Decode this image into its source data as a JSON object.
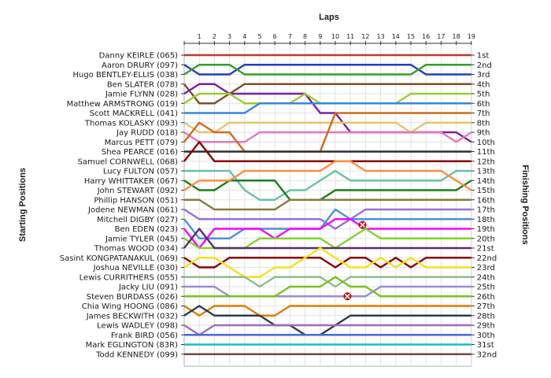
{
  "chart_data": {
    "type": "line",
    "title": "Laps",
    "xlabel": "Laps",
    "ylabel_left": "Starting Positions",
    "ylabel_right": "Finishing Positions",
    "x_ticks": [
      1,
      2,
      3,
      4,
      5,
      6,
      7,
      8,
      9,
      10,
      11,
      12,
      13,
      14,
      15,
      16,
      17,
      18,
      19
    ],
    "drivers": [
      "Danny KEIRLE (065)",
      "Aaron DRURY (097)",
      "Hugo BENTLEY-ELLIS (038)",
      "Ben SLATER (078)",
      "Jamie FLYNN (028)",
      "Matthew ARMSTRONG (019)",
      "Scott MACKRELL (041)",
      "Thomas KOLASKY (093)",
      "Jay RUDD (018)",
      "Marcus PETT (079)",
      "Shea PEARCE (016)",
      "Samuel CORNWELL (068)",
      "Lucy FULTON (057)",
      "Harry WHITTAKER (067)",
      "John STEWART (092)",
      "Phillip HANSON (051)",
      "Jodene NEWMAN (061)",
      "Mitchell DIGBY (027)",
      "Ben EDEN (023)",
      "Jamie TYLER (045)",
      "Thomas WOOD (034)",
      "Sasint KONGPATANAKUL (069)",
      "Joshua NEVILLE (030)",
      "Lewis CURRITHERS (055)",
      "Jacky LIU (091)",
      "Steven BURDASS (026)",
      "Chia Wing HOONG (086)",
      "James BECKWITH (032)",
      "Lewis WADLEY (098)",
      "Frank BIRD (056)",
      "Mark EGLINGTON (83R)",
      "Todd KENNEDY (099)"
    ],
    "finishing_labels": [
      "1st",
      "2nd",
      "3rd",
      "4th",
      "5th",
      "6th",
      "7th",
      "8th",
      "9th",
      "10th",
      "11th",
      "12th",
      "13th",
      "14th",
      "15th",
      "16th",
      "17th",
      "18th",
      "19th",
      "20th",
      "21st",
      "22nd",
      "23rd",
      "24th",
      "25th",
      "26th",
      "27th",
      "28th",
      "29th",
      "30th",
      "31st",
      "32nd"
    ],
    "series": [
      {
        "driver": "Danny KEIRLE (065)",
        "color": "#c0392b",
        "positions": [
          1,
          1,
          1,
          1,
          1,
          1,
          1,
          1,
          1,
          1,
          1,
          1,
          1,
          1,
          1,
          1,
          1,
          1,
          1,
          1
        ]
      },
      {
        "driver": "Aaron DRURY (097)",
        "color": "#1f3fbf",
        "positions": [
          2,
          3,
          3,
          3,
          2,
          2,
          2,
          2,
          2,
          2,
          2,
          2,
          2,
          2,
          2,
          2,
          3,
          3,
          3,
          3
        ]
      },
      {
        "driver": "Hugo BENTLEY-ELLIS (038)",
        "color": "#2ca02c",
        "positions": [
          3,
          2,
          2,
          2,
          3,
          3,
          3,
          3,
          3,
          3,
          3,
          3,
          3,
          3,
          3,
          3,
          2,
          2,
          2,
          2
        ]
      },
      {
        "driver": "Ben SLATER (078)",
        "color": "#7f4f24",
        "positions": [
          4,
          6,
          6,
          5,
          4,
          4,
          4,
          4,
          4,
          4,
          4,
          4,
          4,
          4,
          4,
          4,
          4,
          4,
          4,
          4
        ]
      },
      {
        "driver": "Jamie FLYNN (028)",
        "color": "#7b1fa2",
        "positions": [
          5,
          4,
          4,
          5,
          5,
          5,
          5,
          5,
          5,
          7,
          7,
          9,
          9,
          9,
          9,
          9,
          9,
          9,
          9,
          10
        ]
      },
      {
        "driver": "Matthew ARMSTRONG (019)",
        "color": "#9acd32",
        "positions": [
          6,
          5,
          5,
          5,
          6,
          6,
          6,
          6,
          5,
          6,
          6,
          6,
          6,
          6,
          6,
          5,
          5,
          5,
          5,
          5
        ]
      },
      {
        "driver": "Scott MACKRELL (041)",
        "color": "#3a86d9",
        "positions": [
          7,
          7,
          7,
          7,
          7,
          6,
          6,
          6,
          6,
          6,
          6,
          6,
          6,
          6,
          6,
          6,
          6,
          6,
          6,
          6
        ]
      },
      {
        "driver": "Thomas KOLASKY (093)",
        "color": "#e9c46a",
        "positions": [
          8,
          9,
          9,
          8,
          8,
          8,
          8,
          8,
          8,
          8,
          8,
          8,
          8,
          8,
          8,
          9,
          8,
          8,
          8,
          8
        ]
      },
      {
        "driver": "Jay RUDD (018)",
        "color": "#e377c2",
        "positions": [
          9,
          10,
          10,
          10,
          10,
          9,
          9,
          9,
          9,
          9,
          9,
          9,
          9,
          9,
          9,
          9,
          9,
          9,
          10,
          9
        ]
      },
      {
        "driver": "Marcus PETT (079)",
        "color": "#d2691e",
        "positions": [
          10,
          8,
          9,
          9,
          11,
          11,
          11,
          11,
          11,
          11,
          7,
          7,
          7,
          7,
          7,
          7,
          7,
          7,
          7,
          7
        ]
      },
      {
        "driver": "Shea PEARCE (016)",
        "color": "#2f2f2f",
        "positions": [
          11,
          11,
          11,
          11,
          11,
          11,
          11,
          11,
          11,
          11,
          11,
          11,
          11,
          11,
          11,
          11,
          11,
          11,
          11,
          11
        ]
      },
      {
        "driver": "Samuel CORNWELL (068)",
        "color": "#8b0000",
        "positions": [
          12,
          10,
          12,
          12,
          12,
          12,
          12,
          12,
          12,
          12,
          12,
          12,
          12,
          12,
          12,
          12,
          12,
          12,
          12,
          12
        ]
      },
      {
        "driver": "Lucy FULTON (057)",
        "color": "#66c2a5",
        "positions": [
          13,
          13,
          13,
          13,
          15,
          16,
          16,
          15,
          15,
          14,
          13,
          14,
          14,
          14,
          14,
          14,
          14,
          14,
          13,
          13
        ]
      },
      {
        "driver": "Harry WHITTAKER (067)",
        "color": "#1a7f1a",
        "positions": [
          14,
          15,
          15,
          14,
          14,
          14,
          14,
          16,
          16,
          16,
          15,
          15,
          15,
          15,
          15,
          15,
          15,
          15,
          15,
          14
        ]
      },
      {
        "driver": "John STEWART (092)",
        "color": "#ff8c42",
        "positions": [
          15,
          14,
          14,
          14,
          13,
          13,
          13,
          13,
          13,
          13,
          12,
          12,
          13,
          13,
          13,
          13,
          13,
          13,
          14,
          15
        ]
      },
      {
        "driver": "Phillip HANSON (051)",
        "color": "#8a7a3a",
        "positions": [
          16,
          16,
          17,
          17,
          17,
          17,
          17,
          16,
          16,
          16,
          16,
          16,
          16,
          16,
          16,
          16,
          16,
          16,
          16,
          16
        ]
      },
      {
        "driver": "Jodene NEWMAN (061)",
        "color": "#9370db",
        "positions": [
          17,
          18,
          18,
          18,
          18,
          18,
          18,
          18,
          18,
          18,
          19,
          18,
          17,
          17,
          17,
          17,
          17,
          17,
          17,
          17
        ]
      },
      {
        "driver": "Mitchell DIGBY (027)",
        "color": "#4a90e2",
        "positions": [
          18,
          20,
          20,
          20,
          19,
          19,
          19,
          19,
          19,
          19,
          17,
          18,
          18,
          18,
          18,
          18,
          18,
          18,
          18,
          18
        ]
      },
      {
        "driver": "Ben EDEN (023)",
        "color": "#ff00ff",
        "positions": [
          19,
          21,
          19,
          19,
          19,
          19,
          20,
          19,
          19,
          19,
          18,
          18,
          19,
          19,
          19,
          19,
          19,
          19,
          19,
          19
        ]
      },
      {
        "driver": "Jamie TYLER (045)",
        "color": "#7cd62b",
        "positions": [
          20,
          21,
          21,
          21,
          21,
          20,
          20,
          20,
          20,
          20,
          21,
          20,
          19,
          20,
          20,
          20,
          20,
          20,
          20,
          20
        ]
      },
      {
        "driver": "Thomas WOOD (034)",
        "color": "#5b2c6f",
        "positions": [
          21,
          19,
          21,
          21,
          21,
          21,
          21,
          21,
          21,
          21,
          21,
          21,
          21,
          21,
          21,
          21,
          21,
          21,
          21,
          21
        ]
      },
      {
        "driver": "Sasint KONGPATANAKUL (069)",
        "color": "#8b0000",
        "positions": [
          22,
          23,
          23,
          22,
          22,
          22,
          22,
          22,
          22,
          22,
          23,
          22,
          22,
          23,
          22,
          23,
          22,
          22,
          22,
          22
        ]
      },
      {
        "driver": "Joshua NEVILLE (030)",
        "color": "#f5e216",
        "positions": [
          23,
          22,
          22,
          23,
          24,
          24,
          23,
          23,
          22,
          21,
          22,
          23,
          23,
          22,
          23,
          22,
          23,
          23,
          23,
          23
        ]
      },
      {
        "driver": "Lewis CURRITHERS (055)",
        "color": "#8fbc8f",
        "positions": [
          24,
          24,
          24,
          24,
          24,
          25,
          24,
          24,
          24,
          24,
          25,
          24,
          24,
          24,
          24,
          24,
          24,
          24,
          24,
          24
        ]
      },
      {
        "driver": "Jacky LIU (091)",
        "color": "#9b8ad6",
        "positions": [
          25,
          25,
          25,
          26,
          26,
          26,
          26,
          26,
          26,
          26,
          26,
          26,
          26,
          25,
          25,
          25,
          25,
          25,
          25,
          25
        ]
      },
      {
        "driver": "Steven BURDASS (026)",
        "color": "#76c41c",
        "positions": [
          26,
          26,
          26,
          26,
          26,
          26,
          26,
          25,
          25,
          25,
          24,
          25,
          25,
          26,
          26,
          26,
          26,
          26,
          26,
          26
        ]
      },
      {
        "driver": "Chia Wing HOONG (086)",
        "color": "#e07b00",
        "positions": [
          27,
          28,
          27,
          27,
          27,
          28,
          28,
          27,
          27,
          27,
          27,
          27,
          27,
          27,
          27,
          27,
          27,
          27,
          27,
          27
        ]
      },
      {
        "driver": "James BECKWITH (032)",
        "color": "#2c3e50",
        "positions": [
          28,
          27,
          28,
          28,
          28,
          28,
          29,
          29,
          30,
          30,
          29,
          28,
          28,
          28,
          28,
          28,
          28,
          28,
          28,
          28
        ]
      },
      {
        "driver": "Lewis WADLEY (098)",
        "color": "#a569bd",
        "positions": [
          29,
          30,
          29,
          29,
          29,
          29,
          29,
          29,
          29,
          29,
          29,
          29,
          29,
          29,
          29,
          29,
          29,
          29,
          29,
          29
        ]
      },
      {
        "driver": "Frank BIRD (056)",
        "color": "#4169e1",
        "positions": [
          30,
          30,
          30,
          30,
          30,
          30,
          30,
          30,
          30,
          30,
          30,
          30,
          30,
          30,
          30,
          30,
          30,
          30,
          30,
          30
        ]
      },
      {
        "driver": "Mark EGLINGTON (83R)",
        "color": "#17becf",
        "positions": [
          31,
          31,
          31,
          31,
          31,
          31,
          31,
          31,
          31,
          31,
          31,
          31,
          31,
          31,
          31,
          31,
          31,
          31,
          31,
          31
        ]
      },
      {
        "driver": "Todd KENNEDY (099)",
        "color": "#6d4c41",
        "positions": [
          32,
          32,
          32,
          32,
          32,
          32,
          32,
          32,
          32,
          32,
          32,
          32,
          32,
          32,
          32,
          32,
          32,
          32,
          32,
          32
        ]
      }
    ],
    "retirements": [
      {
        "lap": 11.8,
        "position": 18.6
      },
      {
        "lap": 10.8,
        "position": 26.0
      }
    ],
    "grid": true
  }
}
